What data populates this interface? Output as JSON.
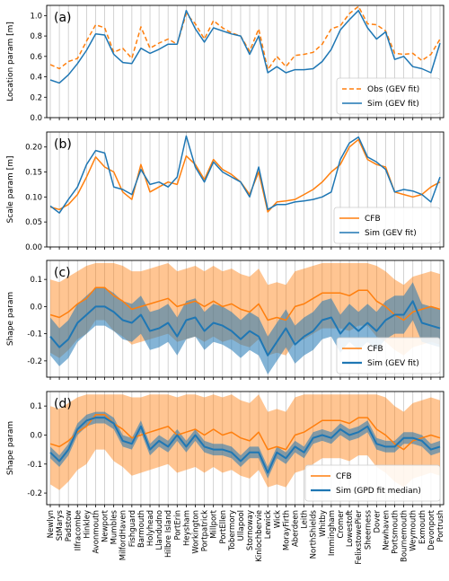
{
  "colors": {
    "obs": "#ff7f0e",
    "sim": "#1f77b4",
    "grid": "#c8c8c8"
  },
  "stations": [
    "Newlyn",
    "StMarys",
    "Padstow",
    "Ilfracombe",
    "Hinkley",
    "Avonmouth",
    "Newport",
    "Mumbles",
    "MilfordHaven",
    "Fishguard",
    "Barmouth",
    "Holyhead",
    "Llandudno",
    "Hilbre Island",
    "PortErin",
    "Heysham",
    "Workington",
    "Portpatrick",
    "Millport",
    "PortEllen",
    "Tobermory",
    "Ullapool",
    "Stornoway",
    "Kinlochbervie",
    "Lerwick",
    "Wick",
    "MorayFirth",
    "Aberdeen",
    "Leith",
    "NorthShields",
    "Whitby",
    "Immingham",
    "Cromer",
    "Lowestoft",
    "FelixstowePier",
    "Sheerness",
    "Dover",
    "Newhaven",
    "Portsmouth",
    "Bournemouth",
    "Weymouth",
    "Exmouth",
    "Devonport",
    "Portrush"
  ],
  "chart_data": [
    {
      "type": "line",
      "panel": "(a)",
      "ylabel": "Location param [m]",
      "ylim": [
        0.0,
        1.1
      ],
      "yticks": [
        "0.0",
        "0.2",
        "0.4",
        "0.6",
        "0.8",
        "1.0"
      ],
      "legend_position": "lower-right",
      "series": [
        {
          "name": "Obs (GEV fit)",
          "style": "dashed",
          "color": "#ff7f0e",
          "values": [
            0.52,
            0.48,
            0.55,
            0.58,
            0.75,
            0.91,
            0.88,
            0.64,
            0.68,
            0.58,
            0.89,
            0.68,
            0.73,
            0.77,
            0.72,
            1.02,
            0.92,
            0.77,
            0.95,
            0.88,
            0.83,
            0.8,
            0.65,
            0.87,
            0.47,
            0.6,
            0.5,
            0.61,
            0.62,
            0.64,
            0.72,
            0.87,
            0.9,
            1.02,
            1.09,
            0.92,
            0.91,
            0.85,
            0.63,
            0.62,
            0.63,
            0.56,
            0.62,
            0.77
          ]
        },
        {
          "name": "Sim (GEV fit)",
          "style": "solid",
          "color": "#1f77b4",
          "values": [
            0.37,
            0.34,
            0.42,
            0.53,
            0.66,
            0.82,
            0.81,
            0.62,
            0.54,
            0.53,
            0.68,
            0.63,
            0.67,
            0.72,
            0.72,
            1.05,
            0.87,
            0.74,
            0.88,
            0.85,
            0.82,
            0.8,
            0.62,
            0.8,
            0.44,
            0.5,
            0.44,
            0.47,
            0.47,
            0.48,
            0.55,
            0.67,
            0.86,
            0.96,
            1.05,
            0.88,
            0.77,
            0.84,
            0.57,
            0.6,
            0.5,
            0.48,
            0.44,
            0.73
          ]
        }
      ]
    },
    {
      "type": "line",
      "panel": "(b)",
      "ylabel": "Scale param [m]",
      "ylim": [
        0.0,
        0.23
      ],
      "yticks": [
        "0.00",
        "0.05",
        "0.10",
        "0.15",
        "0.20"
      ],
      "legend_position": "lower-right",
      "series": [
        {
          "name": "CFB",
          "style": "solid",
          "color": "#ff7f0e",
          "values": [
            0.08,
            0.075,
            0.085,
            0.105,
            0.14,
            0.18,
            0.16,
            0.15,
            0.11,
            0.095,
            0.165,
            0.11,
            0.12,
            0.13,
            0.125,
            0.182,
            0.165,
            0.135,
            0.175,
            0.155,
            0.145,
            0.13,
            0.105,
            0.15,
            0.07,
            0.09,
            0.092,
            0.095,
            0.105,
            0.115,
            0.13,
            0.15,
            0.165,
            0.2,
            0.215,
            0.175,
            0.165,
            0.16,
            0.11,
            0.105,
            0.1,
            0.105,
            0.12,
            0.13
          ]
        },
        {
          "name": "Sim (GEV fit)",
          "style": "solid",
          "color": "#1f77b4",
          "values": [
            0.082,
            0.068,
            0.095,
            0.12,
            0.165,
            0.193,
            0.188,
            0.12,
            0.115,
            0.105,
            0.155,
            0.125,
            0.13,
            0.12,
            0.14,
            0.222,
            0.16,
            0.13,
            0.17,
            0.15,
            0.14,
            0.13,
            0.1,
            0.16,
            0.075,
            0.085,
            0.085,
            0.09,
            0.092,
            0.095,
            0.1,
            0.11,
            0.175,
            0.208,
            0.22,
            0.18,
            0.17,
            0.155,
            0.11,
            0.115,
            0.112,
            0.105,
            0.09,
            0.14
          ]
        }
      ]
    },
    {
      "type": "line",
      "panel": "(c)",
      "ylabel": "Shape param",
      "ylim": [
        -0.26,
        0.17
      ],
      "yticks": [
        "-0.2",
        "-0.1",
        "0.0",
        "0.1"
      ],
      "legend_position": "lower-right",
      "series": [
        {
          "name": "CFB",
          "style": "solid",
          "color": "#ff7f0e",
          "values": [
            -0.03,
            -0.04,
            -0.02,
            0.01,
            0.03,
            0.07,
            0.07,
            0.04,
            0.02,
            -0.01,
            0.0,
            0.01,
            0.02,
            0.03,
            0.0,
            0.01,
            0.02,
            0.0,
            0.02,
            0.0,
            0.01,
            -0.01,
            -0.02,
            0.01,
            -0.05,
            -0.04,
            -0.05,
            0.0,
            0.01,
            0.03,
            0.05,
            0.05,
            0.05,
            0.04,
            0.06,
            0.06,
            0.02,
            0.0,
            -0.03,
            -0.05,
            -0.02,
            -0.01,
            0.0,
            -0.01
          ],
          "lower": [
            -0.17,
            -0.19,
            -0.16,
            -0.12,
            -0.1,
            -0.05,
            -0.05,
            -0.09,
            -0.11,
            -0.14,
            -0.13,
            -0.12,
            -0.11,
            -0.1,
            -0.13,
            -0.12,
            -0.11,
            -0.13,
            -0.11,
            -0.13,
            -0.12,
            -0.14,
            -0.15,
            -0.12,
            -0.18,
            -0.17,
            -0.18,
            -0.13,
            -0.12,
            -0.1,
            -0.08,
            -0.08,
            -0.08,
            -0.09,
            -0.07,
            -0.07,
            -0.11,
            -0.13,
            -0.16,
            -0.18,
            -0.15,
            -0.14,
            -0.13,
            -0.14
          ],
          "upper": [
            0.1,
            0.09,
            0.11,
            0.13,
            0.15,
            0.16,
            0.16,
            0.16,
            0.15,
            0.13,
            0.13,
            0.14,
            0.15,
            0.16,
            0.13,
            0.14,
            0.15,
            0.13,
            0.15,
            0.13,
            0.14,
            0.12,
            0.11,
            0.14,
            0.08,
            0.09,
            0.08,
            0.13,
            0.14,
            0.15,
            0.16,
            0.16,
            0.16,
            0.16,
            0.16,
            0.16,
            0.15,
            0.13,
            0.1,
            0.08,
            0.11,
            0.12,
            0.13,
            0.12
          ]
        },
        {
          "name": "Sim (GEV fit)",
          "style": "solid",
          "color": "#1f77b4",
          "values": [
            -0.11,
            -0.15,
            -0.12,
            -0.06,
            -0.03,
            0.0,
            0.0,
            -0.02,
            -0.05,
            -0.06,
            -0.03,
            -0.09,
            -0.08,
            -0.06,
            -0.11,
            -0.05,
            -0.04,
            -0.09,
            -0.06,
            -0.07,
            -0.09,
            -0.12,
            -0.09,
            -0.11,
            -0.18,
            -0.13,
            -0.08,
            -0.14,
            -0.11,
            -0.09,
            -0.05,
            -0.04,
            -0.1,
            -0.06,
            -0.09,
            -0.06,
            -0.09,
            -0.05,
            -0.03,
            -0.03,
            0.02,
            -0.06,
            -0.07,
            -0.08
          ],
          "lower": [
            -0.18,
            -0.22,
            -0.19,
            -0.13,
            -0.1,
            -0.07,
            -0.07,
            -0.09,
            -0.12,
            -0.13,
            -0.1,
            -0.16,
            -0.15,
            -0.13,
            -0.18,
            -0.12,
            -0.11,
            -0.16,
            -0.13,
            -0.14,
            -0.16,
            -0.19,
            -0.16,
            -0.18,
            -0.25,
            -0.2,
            -0.15,
            -0.21,
            -0.18,
            -0.16,
            -0.12,
            -0.11,
            -0.17,
            -0.13,
            -0.16,
            -0.13,
            -0.16,
            -0.12,
            -0.1,
            -0.1,
            -0.05,
            -0.13,
            -0.14,
            -0.15
          ],
          "upper": [
            -0.04,
            -0.08,
            -0.05,
            0.01,
            0.04,
            0.07,
            0.07,
            0.05,
            0.02,
            0.01,
            0.04,
            -0.02,
            -0.01,
            0.01,
            -0.04,
            0.02,
            0.03,
            -0.02,
            0.01,
            0.0,
            -0.02,
            -0.05,
            -0.02,
            -0.04,
            -0.11,
            -0.06,
            -0.01,
            -0.07,
            -0.04,
            -0.02,
            0.02,
            0.03,
            -0.03,
            0.01,
            -0.02,
            0.01,
            -0.02,
            0.02,
            0.04,
            0.04,
            0.09,
            0.01,
            0.0,
            -0.01
          ]
        }
      ]
    },
    {
      "type": "line",
      "panel": "(d)",
      "ylabel": "Shape param",
      "ylim": [
        -0.24,
        0.15
      ],
      "yticks": [
        "-0.2",
        "-0.1",
        "0.0",
        "0.1"
      ],
      "legend_position": "lower-right",
      "series": [
        {
          "name": "CFB",
          "style": "solid",
          "color": "#ff7f0e",
          "values": [
            -0.03,
            -0.04,
            -0.02,
            0.01,
            0.03,
            0.07,
            0.07,
            0.04,
            0.02,
            -0.01,
            0.0,
            0.01,
            0.02,
            0.03,
            0.0,
            0.01,
            0.02,
            0.0,
            0.02,
            0.0,
            0.01,
            -0.01,
            -0.02,
            0.01,
            -0.05,
            -0.04,
            -0.05,
            0.0,
            0.01,
            0.03,
            0.05,
            0.05,
            0.05,
            0.04,
            0.06,
            0.06,
            0.02,
            0.0,
            -0.03,
            -0.05,
            -0.02,
            -0.01,
            0.0,
            -0.01
          ],
          "lower": [
            -0.17,
            -0.19,
            -0.16,
            -0.12,
            -0.1,
            -0.05,
            -0.05,
            -0.09,
            -0.11,
            -0.14,
            -0.13,
            -0.12,
            -0.11,
            -0.1,
            -0.13,
            -0.12,
            -0.11,
            -0.13,
            -0.11,
            -0.13,
            -0.12,
            -0.14,
            -0.15,
            -0.12,
            -0.18,
            -0.17,
            -0.18,
            -0.13,
            -0.12,
            -0.1,
            -0.08,
            -0.08,
            -0.08,
            -0.09,
            -0.07,
            -0.07,
            -0.11,
            -0.13,
            -0.16,
            -0.18,
            -0.15,
            -0.14,
            -0.13,
            -0.14
          ],
          "upper": [
            0.1,
            0.09,
            0.11,
            0.13,
            0.14,
            0.14,
            0.14,
            0.14,
            0.14,
            0.13,
            0.13,
            0.14,
            0.14,
            0.14,
            0.13,
            0.14,
            0.14,
            0.13,
            0.14,
            0.13,
            0.14,
            0.12,
            0.11,
            0.14,
            0.08,
            0.09,
            0.08,
            0.13,
            0.14,
            0.14,
            0.14,
            0.14,
            0.14,
            0.14,
            0.14,
            0.14,
            0.14,
            0.13,
            0.1,
            0.08,
            0.11,
            0.12,
            0.13,
            0.12
          ]
        },
        {
          "name": "Sim (GPD fit median)",
          "style": "solid",
          "color": "#1f77b4",
          "values": [
            -0.06,
            -0.09,
            -0.05,
            0.02,
            0.05,
            0.06,
            0.06,
            0.04,
            -0.02,
            -0.03,
            0.03,
            -0.05,
            -0.02,
            -0.04,
            0.0,
            -0.04,
            0.0,
            -0.04,
            -0.05,
            -0.05,
            -0.06,
            -0.09,
            -0.06,
            -0.06,
            -0.13,
            -0.06,
            -0.08,
            -0.04,
            -0.06,
            -0.01,
            0.0,
            -0.01,
            0.02,
            0.0,
            0.01,
            0.03,
            -0.03,
            -0.04,
            -0.04,
            -0.01,
            -0.01,
            -0.02,
            -0.05,
            -0.04
          ],
          "lower": [
            -0.08,
            -0.11,
            -0.07,
            0.0,
            0.03,
            0.04,
            0.04,
            0.02,
            -0.04,
            -0.05,
            0.01,
            -0.07,
            -0.04,
            -0.06,
            -0.02,
            -0.06,
            -0.02,
            -0.06,
            -0.07,
            -0.07,
            -0.08,
            -0.11,
            -0.08,
            -0.08,
            -0.15,
            -0.08,
            -0.1,
            -0.06,
            -0.08,
            -0.03,
            -0.02,
            -0.03,
            0.0,
            -0.02,
            -0.01,
            0.01,
            -0.05,
            -0.06,
            -0.06,
            -0.03,
            -0.03,
            -0.04,
            -0.07,
            -0.06
          ],
          "upper": [
            -0.04,
            -0.07,
            -0.03,
            0.04,
            0.07,
            0.08,
            0.08,
            0.06,
            0.0,
            -0.01,
            0.05,
            -0.03,
            0.0,
            -0.02,
            0.02,
            -0.02,
            0.02,
            -0.02,
            -0.03,
            -0.03,
            -0.04,
            -0.07,
            -0.04,
            -0.04,
            -0.11,
            -0.04,
            -0.06,
            -0.02,
            -0.04,
            0.01,
            0.02,
            0.01,
            0.04,
            0.02,
            0.03,
            0.05,
            -0.01,
            -0.02,
            -0.02,
            0.01,
            0.01,
            0.0,
            -0.03,
            -0.02
          ]
        }
      ]
    }
  ]
}
